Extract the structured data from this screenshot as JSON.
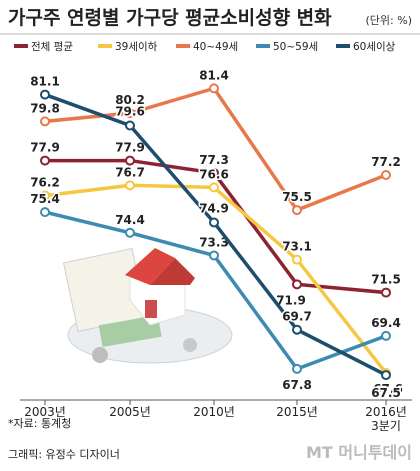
{
  "chart_data": {
    "type": "line",
    "title": "가구주 연령별 가구당 평균소비성향 변화",
    "unit": "(단위: %)",
    "categories": [
      "2003년",
      "2005년",
      "2010년",
      "2015년",
      "2016년 3분기"
    ],
    "series": [
      {
        "name": "전체 평균",
        "color": "#8b2331",
        "values": [
          77.9,
          77.9,
          77.3,
          71.9,
          71.5
        ]
      },
      {
        "name": "39세이하",
        "color": "#f5c842",
        "values": [
          76.2,
          76.7,
          76.6,
          73.1,
          67.6
        ]
      },
      {
        "name": "40~49세",
        "color": "#e8784a",
        "values": [
          79.8,
          80.2,
          81.4,
          75.5,
          77.2
        ]
      },
      {
        "name": "50~59세",
        "color": "#3d8bb0",
        "values": [
          75.4,
          74.4,
          73.3,
          67.8,
          69.4
        ]
      },
      {
        "name": "60세이상",
        "color": "#1d4e6e",
        "values": [
          81.1,
          79.6,
          74.9,
          69.7,
          67.5
        ]
      }
    ],
    "ylim": [
      66,
      82
    ],
    "source": "*자료: 통계청",
    "credit": "그래픽: 유정수 디자이너",
    "watermark": "MT 머니투데이"
  }
}
